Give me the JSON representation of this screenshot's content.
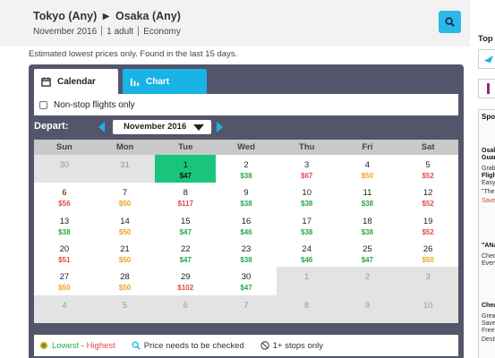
{
  "header": {
    "origin": "Tokyo (Any)",
    "destination": "Osaka (Any)",
    "month": "November 2016",
    "passengers": "1 adult",
    "cabin": "Economy"
  },
  "note": "Estimated lowest prices only. Found in the last 15 days.",
  "tabs": {
    "calendar": "Calendar",
    "chart": "Chart"
  },
  "nonstop_label": "Non-stop flights only",
  "depart_label": "Depart:",
  "month_select": "November 2016",
  "days_of_week": [
    "Sun",
    "Mon",
    "Tue",
    "Wed",
    "Thu",
    "Fri",
    "Sat"
  ],
  "calendar": [
    {
      "day": "30",
      "price": "",
      "tone": "",
      "out": true
    },
    {
      "day": "31",
      "price": "",
      "tone": "",
      "out": true
    },
    {
      "day": "1",
      "price": "$47",
      "tone": "green",
      "selected": true
    },
    {
      "day": "2",
      "price": "$38",
      "tone": "green"
    },
    {
      "day": "3",
      "price": "$67",
      "tone": "red"
    },
    {
      "day": "4",
      "price": "$50",
      "tone": "orange"
    },
    {
      "day": "5",
      "price": "$52",
      "tone": "red"
    },
    {
      "day": "6",
      "price": "$56",
      "tone": "red"
    },
    {
      "day": "7",
      "price": "$50",
      "tone": "orange"
    },
    {
      "day": "8",
      "price": "$117",
      "tone": "red"
    },
    {
      "day": "9",
      "price": "$38",
      "tone": "green"
    },
    {
      "day": "10",
      "price": "$38",
      "tone": "green"
    },
    {
      "day": "11",
      "price": "$38",
      "tone": "green"
    },
    {
      "day": "12",
      "price": "$52",
      "tone": "red"
    },
    {
      "day": "13",
      "price": "$38",
      "tone": "green"
    },
    {
      "day": "14",
      "price": "$50",
      "tone": "orange"
    },
    {
      "day": "15",
      "price": "$47",
      "tone": "green"
    },
    {
      "day": "16",
      "price": "$46",
      "tone": "green"
    },
    {
      "day": "17",
      "price": "$38",
      "tone": "green"
    },
    {
      "day": "18",
      "price": "$38",
      "tone": "green"
    },
    {
      "day": "19",
      "price": "$52",
      "tone": "red"
    },
    {
      "day": "20",
      "price": "$51",
      "tone": "red"
    },
    {
      "day": "21",
      "price": "$50",
      "tone": "orange"
    },
    {
      "day": "22",
      "price": "$47",
      "tone": "green"
    },
    {
      "day": "23",
      "price": "$38",
      "tone": "green"
    },
    {
      "day": "24",
      "price": "$46",
      "tone": "green"
    },
    {
      "day": "25",
      "price": "$47",
      "tone": "green"
    },
    {
      "day": "26",
      "price": "$50",
      "tone": "orange"
    },
    {
      "day": "27",
      "price": "$50",
      "tone": "orange"
    },
    {
      "day": "28",
      "price": "$50",
      "tone": "orange"
    },
    {
      "day": "29",
      "price": "$102",
      "tone": "red"
    },
    {
      "day": "30",
      "price": "$47",
      "tone": "green"
    },
    {
      "day": "1",
      "price": "",
      "tone": "",
      "out": true
    },
    {
      "day": "2",
      "price": "",
      "tone": "",
      "out": true
    },
    {
      "day": "3",
      "price": "",
      "tone": "",
      "out": true
    },
    {
      "day": "4",
      "price": "",
      "tone": "",
      "out": true
    },
    {
      "day": "5",
      "price": "",
      "tone": "",
      "out": true
    },
    {
      "day": "6",
      "price": "",
      "tone": "",
      "out": true
    },
    {
      "day": "7",
      "price": "",
      "tone": "",
      "out": true
    },
    {
      "day": "8",
      "price": "",
      "tone": "",
      "out": true
    },
    {
      "day": "9",
      "price": "",
      "tone": "",
      "out": true
    },
    {
      "day": "10",
      "price": "",
      "tone": "",
      "out": true
    }
  ],
  "legend": {
    "lowest": "Lowest",
    "dash": " - ",
    "highest": "Highest",
    "check": "Price needs to be checked",
    "stops": "1+ stops only"
  },
  "sidebar": {
    "top": "Top",
    "spo": "Spo",
    "lines": [
      "Osak",
      "Guar",
      "Grab",
      "Fligh",
      "Easy",
      "\"The",
      "Save",
      "\"ANA",
      "Chec",
      "Every",
      "Chea",
      "Great",
      "Save",
      "Free",
      "Desti"
    ]
  },
  "colors": {
    "panel": "#53566b",
    "accent": "#1ab3e6",
    "selected": "#19c57a",
    "price_green": "#29a84a",
    "price_orange": "#f1a21c",
    "price_red": "#e24a4a"
  }
}
